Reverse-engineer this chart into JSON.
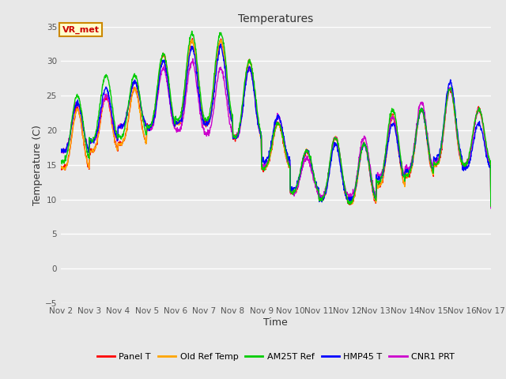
{
  "title": "Temperatures",
  "xlabel": "Time",
  "ylabel": "Temperature (C)",
  "ylim": [
    -5,
    35
  ],
  "yticks": [
    -5,
    0,
    5,
    10,
    15,
    20,
    25,
    30,
    35
  ],
  "background_color": "#e8e8e8",
  "plot_bg_color": "#e8e8e8",
  "legend_entries": [
    "Panel T",
    "Old Ref Temp",
    "AM25T Ref",
    "HMP45 T",
    "CNR1 PRT"
  ],
  "legend_colors": [
    "#ff0000",
    "#ffa500",
    "#00cc00",
    "#0000ff",
    "#cc00cc"
  ],
  "annotation_text": "VR_met",
  "annotation_bg": "#ffffcc",
  "annotation_border": "#cc8800",
  "annotation_text_color": "#cc0000",
  "x_start": 2,
  "x_end": 17,
  "xtick_labels": [
    "Nov 2",
    "Nov 3",
    "Nov 4",
    "Nov 5",
    "Nov 6",
    "Nov 7",
    "Nov 8",
    "Nov 9",
    "Nov 10",
    "Nov 11",
    "Nov 12",
    "Nov 13",
    "Nov 14",
    "Nov 15",
    "Nov 16",
    "Nov 17"
  ],
  "xtick_positions": [
    2,
    3,
    4,
    5,
    6,
    7,
    8,
    9,
    10,
    11,
    12,
    13,
    14,
    15,
    16,
    17
  ],
  "figwidth": 6.4,
  "figheight": 4.8,
  "dpi": 100,
  "line_width": 1.0
}
